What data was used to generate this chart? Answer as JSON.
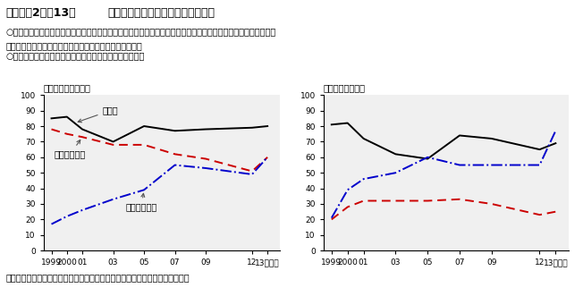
{
  "title_bold": "第２－（2）－13図",
  "title_normal": "賃金制度（体系）の導入状況の推移",
  "bullet1_line1": "○　非管理職では、職能給が一貫して多くの企業で用いられている一方、年齢・勤続給を用いる企業が減少するの",
  "bullet1_line2": "　に代わり、役割・職務給を用いる企業が増加している。",
  "bullet2": "○　管理職では役割・職務給の導入率が上昇傾向にある。",
  "ylabel_left": "（％）（非管理職）",
  "ylabel_right": "（％）（管理職）",
  "source": "資料出所　（公財）日本生産性本部「日本的雇用・人事の変容に関する調査」",
  "x_values": [
    1999,
    2000,
    2001,
    2003,
    2005,
    2007,
    2009,
    2012,
    2013
  ],
  "x_labels": [
    "1999",
    "2000",
    "01",
    "03",
    "05",
    "07",
    "09",
    "12",
    "13（年）"
  ],
  "left_shokuno": [
    85,
    86,
    78,
    70,
    80,
    77,
    78,
    79,
    80
  ],
  "left_nenko": [
    78,
    75,
    73,
    68,
    68,
    62,
    59,
    51,
    60
  ],
  "left_yakuwari": [
    17,
    22,
    26,
    33,
    39,
    55,
    53,
    49,
    60
  ],
  "right_shokuno": [
    81,
    82,
    72,
    62,
    59,
    74,
    72,
    65,
    69
  ],
  "right_nenko": [
    20,
    28,
    32,
    32,
    32,
    33,
    30,
    23,
    25
  ],
  "right_yakuwari": [
    21,
    39,
    46,
    50,
    60,
    55,
    55,
    55,
    77
  ],
  "color_shokuno": "#000000",
  "color_nenko": "#cc0000",
  "color_yakuwari": "#0000cc",
  "ann_shokuno": "職能給",
  "ann_nenko": "年齢・勤続給",
  "ann_yakuwari": "役割・職務給"
}
